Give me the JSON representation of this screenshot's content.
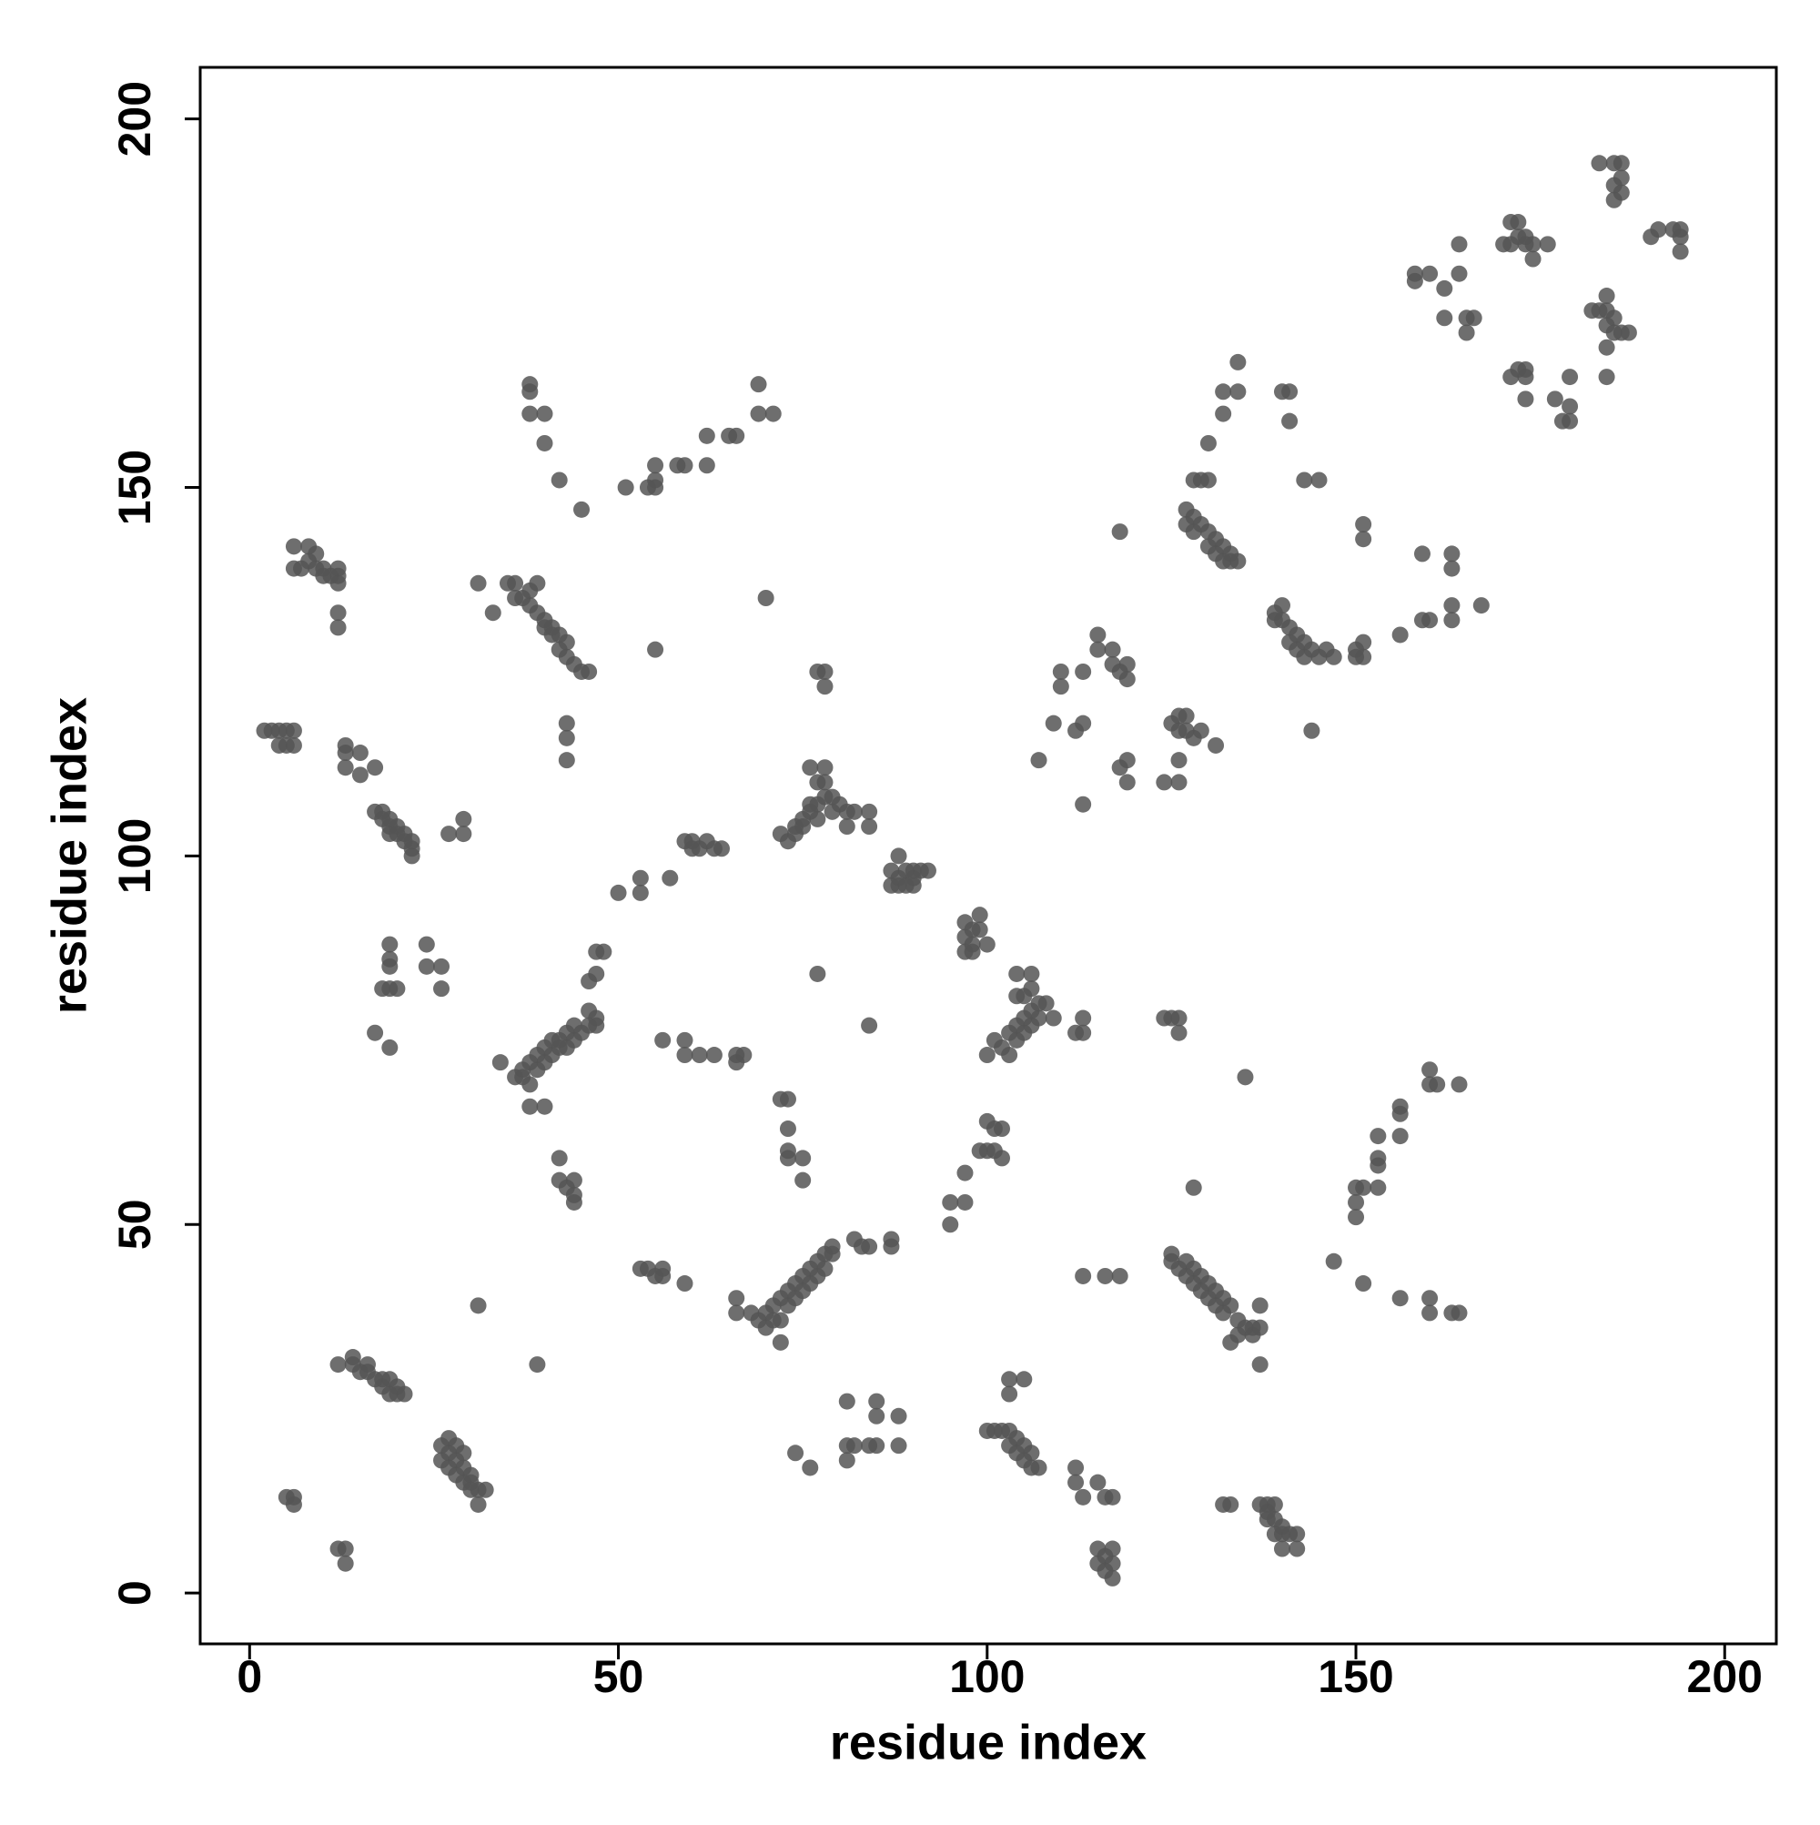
{
  "chart_data": {
    "type": "scatter",
    "xlabel": "residue index",
    "ylabel": "residue index",
    "xlim": [
      -6.7,
      207
    ],
    "ylim": [
      -6.9,
      207
    ],
    "xticks": [
      0,
      50,
      100,
      150,
      200
    ],
    "yticks": [
      0,
      50,
      100,
      150,
      200
    ],
    "color": "#555555",
    "x": [
      5,
      6,
      6,
      12,
      13,
      13,
      12,
      14,
      14,
      15,
      16,
      16,
      17,
      18,
      18,
      19,
      19,
      20,
      21,
      20,
      26,
      27,
      27,
      28,
      28,
      29,
      29,
      30,
      30,
      31,
      31,
      32,
      26,
      27,
      28,
      29,
      30,
      31,
      39,
      2,
      3,
      4,
      5,
      6,
      4,
      5,
      6,
      13,
      13,
      15,
      13,
      15,
      17,
      17,
      18,
      18,
      19,
      19,
      20,
      20,
      21,
      21,
      22,
      22,
      22,
      19,
      27,
      29,
      29,
      19,
      19,
      19,
      18,
      19,
      20,
      24,
      24,
      26,
      26,
      17,
      19,
      6,
      8,
      6,
      7,
      8,
      9,
      10,
      11,
      12,
      12,
      12,
      10,
      12,
      12,
      9,
      31,
      33,
      35,
      36,
      36,
      37,
      38,
      39,
      39,
      40,
      40,
      41,
      42,
      42,
      43,
      43,
      44,
      45,
      46,
      43,
      43,
      43,
      41,
      38,
      38,
      38,
      38,
      40,
      40,
      42,
      45,
      51,
      54,
      55,
      55,
      55,
      58,
      59,
      62,
      62,
      65,
      66,
      69,
      69,
      71,
      70,
      55,
      34,
      36,
      37,
      37,
      38,
      38,
      39,
      39,
      40,
      40,
      41,
      41,
      42,
      42,
      43,
      43,
      44,
      44,
      45,
      46,
      46,
      47,
      47,
      46,
      47,
      47,
      48,
      38,
      40,
      42,
      42,
      43,
      44,
      44,
      44,
      50,
      53,
      53,
      57,
      56,
      59,
      59,
      61,
      63,
      66,
      66,
      67,
      59,
      60,
      60,
      61,
      62,
      63,
      64,
      53,
      54,
      55,
      56,
      56,
      59,
      66,
      66,
      68,
      69,
      70,
      70,
      71,
      71,
      72,
      72,
      73,
      73,
      74,
      74,
      75,
      75,
      76,
      76,
      77,
      77,
      78,
      78,
      79,
      79,
      72,
      74,
      76,
      72,
      73,
      73,
      73,
      73,
      75,
      75,
      72,
      73,
      74,
      74,
      75,
      75,
      76,
      76,
      77,
      77,
      78,
      78,
      79,
      79,
      80,
      81,
      81,
      82,
      84,
      84,
      76,
      78,
      77,
      78,
      77,
      78,
      87,
      88,
      88,
      89,
      90,
      90,
      91,
      92,
      87,
      88,
      89,
      90,
      97,
      97,
      98,
      98,
      99,
      99,
      100,
      97,
      98,
      77,
      84,
      82,
      83,
      84,
      87,
      87,
      81,
      85,
      85,
      88,
      81,
      82,
      84,
      85,
      88,
      81,
      95,
      95,
      97,
      97,
      99,
      100,
      100,
      101,
      101,
      102,
      102,
      100,
      101,
      102,
      103,
      103,
      104,
      104,
      105,
      105,
      106,
      106,
      107,
      107,
      108,
      109,
      105,
      106,
      104,
      106,
      104,
      113,
      113,
      112,
      100,
      101,
      102,
      103,
      103,
      104,
      104,
      105,
      105,
      106,
      106,
      107,
      103,
      103,
      105,
      112,
      112,
      113,
      115,
      116,
      117,
      115,
      116,
      117,
      117,
      117,
      115,
      116,
      113,
      116,
      118,
      110,
      110,
      109,
      112,
      113,
      113,
      107,
      113,
      115,
      115,
      117,
      117,
      118,
      119,
      119,
      118,
      118,
      119,
      119,
      124,
      126,
      126,
      125,
      126,
      126,
      127,
      127,
      128,
      129,
      131,
      124,
      126,
      126,
      125,
      125,
      125,
      126,
      127,
      127,
      128,
      128,
      129,
      129,
      130,
      130,
      131,
      131,
      132,
      132,
      133,
      134,
      134,
      135,
      136,
      136,
      137,
      137,
      133,
      137,
      128,
      132,
      133,
      137,
      138,
      138,
      139,
      139,
      140,
      139,
      140,
      141,
      142,
      140,
      142,
      138,
      135,
      127,
      127,
      128,
      128,
      128,
      129,
      130,
      129,
      130,
      130,
      131,
      131,
      132,
      132,
      133,
      133,
      134,
      130,
      132,
      132,
      134,
      134,
      140,
      141,
      141,
      143,
      145,
      139,
      139,
      140,
      140,
      141,
      141,
      142,
      142,
      143,
      143,
      144,
      145,
      146,
      147,
      144,
      150,
      150,
      151,
      151,
      151,
      151,
      156,
      159,
      160,
      159,
      163,
      163,
      163,
      163,
      167,
      150,
      150,
      150,
      151,
      153,
      153,
      153,
      153,
      147,
      151,
      156,
      156,
      156,
      160,
      160,
      161,
      164,
      156,
      160,
      160,
      163,
      164,
      158,
      158,
      160,
      162,
      162,
      164,
      164,
      165,
      165,
      166,
      170,
      171,
      171,
      172,
      172,
      173,
      173,
      174,
      174,
      176,
      171,
      172,
      173,
      173,
      173,
      177,
      178,
      179,
      179,
      179,
      182,
      183,
      184,
      184,
      184,
      185,
      185,
      186,
      187,
      184,
      184,
      183,
      185,
      186,
      186,
      185,
      186,
      185,
      190,
      191,
      193,
      194,
      194,
      194
    ],
    "values": [
      13,
      13,
      12,
      6,
      6,
      4,
      31,
      32,
      31,
      30,
      31,
      30,
      29,
      29,
      28,
      27,
      29,
      27,
      27,
      28,
      20,
      21,
      19,
      18,
      20,
      17,
      19,
      16,
      15,
      14,
      12,
      14,
      18,
      17,
      16,
      15,
      14,
      39,
      31,
      117,
      117,
      117,
      117,
      117,
      115,
      115,
      115,
      115,
      114,
      114,
      112,
      111,
      112,
      106,
      105,
      106,
      104,
      105,
      104,
      103,
      103,
      102,
      101,
      100,
      102,
      103,
      103,
      103,
      105,
      88,
      86,
      85,
      82,
      82,
      82,
      88,
      85,
      85,
      82,
      76,
      74,
      142,
      142,
      139,
      139,
      140,
      139,
      139,
      138,
      139,
      138,
      137,
      138,
      133,
      131,
      141,
      137,
      133,
      137,
      137,
      135,
      135,
      134,
      133,
      137,
      132,
      131,
      131,
      130,
      128,
      129,
      127,
      126,
      125,
      125,
      118,
      116,
      113,
      130,
      136,
      164,
      163,
      160,
      160,
      156,
      151,
      147,
      150,
      150,
      150,
      151,
      153,
      153,
      153,
      153,
      157,
      157,
      157,
      164,
      160,
      160,
      135,
      128,
      72,
      70,
      71,
      70,
      72,
      69,
      71,
      73,
      72,
      74,
      73,
      75,
      74,
      75,
      76,
      74,
      75,
      77,
      76,
      77,
      79,
      78,
      77,
      83,
      84,
      87,
      87,
      66,
      66,
      59,
      56,
      55,
      56,
      53,
      54,
      95,
      95,
      97,
      97,
      75,
      75,
      73,
      73,
      73,
      72,
      73,
      73,
      102,
      102,
      101,
      101,
      102,
      101,
      101,
      44,
      44,
      43,
      43,
      44,
      42,
      40,
      38,
      38,
      37,
      38,
      36,
      37,
      39,
      37,
      40,
      39,
      41,
      40,
      42,
      41,
      43,
      42,
      44,
      43,
      45,
      46,
      44,
      47,
      46,
      34,
      19,
      17,
      67,
      67,
      63,
      60,
      59,
      59,
      56,
      103,
      102,
      103,
      104,
      104,
      105,
      106,
      107,
      107,
      105,
      108,
      110,
      108,
      106,
      107,
      106,
      104,
      106,
      106,
      104,
      112,
      112,
      110,
      125,
      125,
      123,
      98,
      97,
      100,
      98,
      97,
      98,
      98,
      98,
      96,
      96,
      96,
      96,
      91,
      89,
      88,
      90,
      92,
      90,
      88,
      87,
      87,
      84,
      77,
      48,
      47,
      47,
      48,
      47,
      26,
      26,
      24,
      24,
      20,
      20,
      20,
      20,
      20,
      18,
      53,
      50,
      57,
      53,
      60,
      60,
      64,
      63,
      60,
      63,
      59,
      73,
      75,
      74,
      73,
      76,
      75,
      77,
      76,
      78,
      77,
      79,
      78,
      80,
      80,
      78,
      81,
      82,
      84,
      84,
      81,
      78,
      76,
      76,
      22,
      22,
      22,
      22,
      20,
      21,
      19,
      20,
      18,
      19,
      17,
      17,
      29,
      27,
      29,
      15,
      17,
      13,
      15,
      13,
      13,
      6,
      5,
      6,
      4,
      2,
      4,
      3,
      43,
      43,
      43,
      125,
      123,
      118,
      117,
      118,
      107,
      113,
      125,
      130,
      128,
      128,
      126,
      125,
      126,
      124,
      144,
      112,
      113,
      110,
      110,
      110,
      113,
      118,
      119,
      117,
      119,
      117,
      116,
      117,
      115,
      78,
      78,
      76,
      78,
      46,
      45,
      44,
      45,
      43,
      44,
      42,
      43,
      41,
      42,
      40,
      41,
      39,
      40,
      38,
      39,
      37,
      35,
      36,
      36,
      35,
      36,
      39,
      34,
      31,
      55,
      12,
      12,
      12,
      12,
      11,
      12,
      10,
      9,
      8,
      8,
      8,
      8,
      6,
      6,
      10,
      70,
      147,
      145,
      146,
      144,
      151,
      151,
      151,
      145,
      144,
      142,
      143,
      141,
      142,
      140,
      141,
      140,
      140,
      156,
      160,
      163,
      163,
      167,
      163,
      163,
      159,
      151,
      151,
      132,
      133,
      134,
      132,
      131,
      129,
      130,
      128,
      129,
      127,
      128,
      127,
      128,
      127,
      117,
      127,
      128,
      129,
      127,
      145,
      143,
      130,
      132,
      132,
      141,
      141,
      139,
      134,
      132,
      134,
      55,
      53,
      51,
      55,
      62,
      59,
      58,
      55,
      45,
      42,
      62,
      66,
      65,
      71,
      69,
      69,
      69,
      40,
      38,
      40,
      38,
      38,
      179,
      178,
      179,
      177,
      173,
      179,
      183,
      173,
      171,
      173,
      183,
      186,
      183,
      186,
      184,
      184,
      183,
      183,
      181,
      183,
      165,
      166,
      166,
      165,
      162,
      162,
      159,
      159,
      165,
      161,
      174,
      174,
      176,
      174,
      172,
      173,
      171,
      171,
      171,
      169,
      165,
      194,
      194,
      194,
      192,
      191,
      190,
      189,
      184,
      185,
      185,
      185,
      184,
      182
    ]
  }
}
